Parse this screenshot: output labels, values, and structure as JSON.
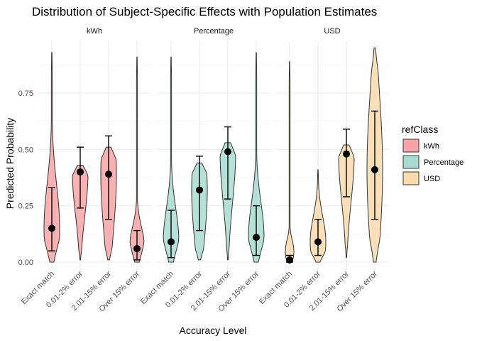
{
  "chart_data": {
    "type": "violin",
    "title": "Distribution of Subject-Specific Effects with Population Estimates",
    "xlabel": "Accuracy Level",
    "ylabel": "Predicted Probability",
    "ylim": [
      0,
      0.95
    ],
    "yticks": [
      "0.00",
      "0.25",
      "0.50",
      "0.75"
    ],
    "ytick_values": [
      0,
      0.25,
      0.5,
      0.75
    ],
    "categories": [
      "Exact match",
      "0.01-2% error",
      "2.01-15% error",
      "Over 15% error"
    ],
    "grid": true,
    "legend": {
      "title": "refClass",
      "position": "right",
      "items": [
        "kWh",
        "Percentage",
        "USD"
      ]
    },
    "colors": {
      "kWh": "#F8A4A6",
      "Percentage": "#A9DCD0",
      "USD": "#F9DBAD"
    },
    "facets": [
      {
        "label": "kWh",
        "groups": [
          {
            "category": "Exact match",
            "min": 0.0,
            "max": 0.93,
            "estimate": 0.15,
            "ci": [
              0.05,
              0.33
            ]
          },
          {
            "category": "0.01-2% error",
            "min": 0.01,
            "max": 0.43,
            "estimate": 0.4,
            "ci": [
              0.24,
              0.51
            ]
          },
          {
            "category": "2.01-15% error",
            "min": 0.01,
            "max": 0.51,
            "estimate": 0.39,
            "ci": [
              0.19,
              0.56
            ]
          },
          {
            "category": "Over 15% error",
            "min": 0.0,
            "max": 0.91,
            "estimate": 0.06,
            "ci": [
              0.01,
              0.14
            ]
          }
        ]
      },
      {
        "label": "Percentage",
        "groups": [
          {
            "category": "Exact match",
            "min": 0.0,
            "max": 0.91,
            "estimate": 0.09,
            "ci": [
              0.02,
              0.23
            ]
          },
          {
            "category": "0.01-2% error",
            "min": 0.01,
            "max": 0.44,
            "estimate": 0.32,
            "ci": [
              0.14,
              0.47
            ]
          },
          {
            "category": "2.01-15% error",
            "min": 0.01,
            "max": 0.53,
            "estimate": 0.49,
            "ci": [
              0.28,
              0.6
            ]
          },
          {
            "category": "Over 15% error",
            "min": 0.0,
            "max": 0.93,
            "estimate": 0.11,
            "ci": [
              0.03,
              0.25
            ]
          }
        ]
      },
      {
        "label": "USD",
        "groups": [
          {
            "category": "Exact match",
            "min": 0.0,
            "max": 0.89,
            "estimate": 0.01,
            "ci": [
              0.0,
              0.03
            ]
          },
          {
            "category": "0.01-2% error",
            "min": 0.0,
            "max": 0.41,
            "estimate": 0.09,
            "ci": [
              0.03,
              0.19
            ]
          },
          {
            "category": "2.01-15% error",
            "min": 0.02,
            "max": 0.52,
            "estimate": 0.48,
            "ci": [
              0.29,
              0.59
            ]
          },
          {
            "category": "Over 15% error",
            "min": 0.0,
            "max": 0.95,
            "estimate": 0.41,
            "ci": [
              0.19,
              0.67
            ]
          }
        ]
      }
    ]
  }
}
